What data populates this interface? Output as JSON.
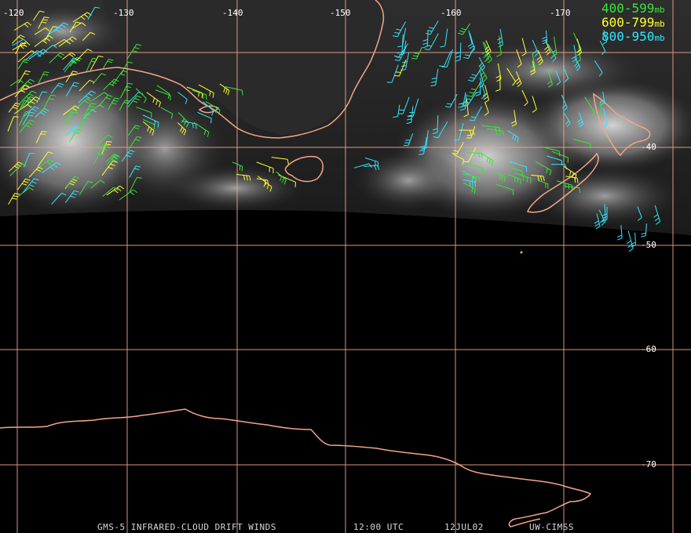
{
  "map": {
    "longitude_labels": [
      "-120",
      "-130",
      "-140",
      "-150",
      "-160",
      "-170"
    ],
    "latitude_labels": [
      "-40",
      "-50",
      "-60",
      "-70"
    ],
    "grid_color": "#f4a58a",
    "coast_color": "#f4a58a"
  },
  "legend": {
    "items": [
      {
        "range": "400-599",
        "unit": "mb",
        "color": "#39e639"
      },
      {
        "range": "600-799",
        "unit": "mb",
        "color": "#ffff33"
      },
      {
        "range": "800-950",
        "unit": "mb",
        "color": "#33e6ff"
      }
    ]
  },
  "footer": {
    "product": "GMS-5 INFRARED-CLOUD DRIFT WINDS",
    "time": "12:00 UTC",
    "date": "12JUL02",
    "source": "UW-CIMSS"
  }
}
